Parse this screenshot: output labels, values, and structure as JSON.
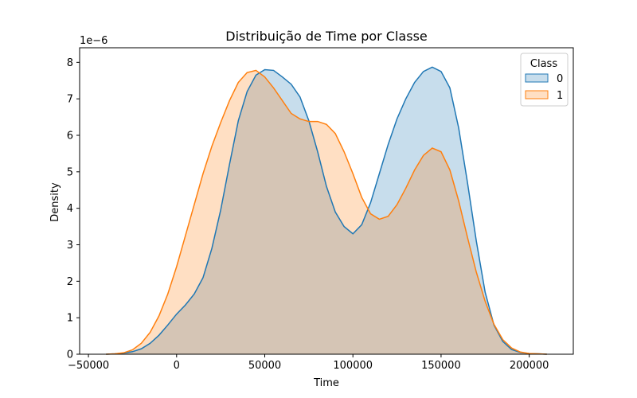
{
  "chart_data": {
    "type": "area",
    "title": "Distribuição de Time por Classe",
    "xlabel": "Time",
    "ylabel": "Density",
    "y_offset_label": "1e−6",
    "xlim": [
      -55000,
      225000
    ],
    "ylim": [
      0,
      8.4
    ],
    "x_ticks": [
      -50000,
      0,
      50000,
      100000,
      150000,
      200000
    ],
    "x_tick_labels": [
      "−50000",
      "0",
      "50000",
      "100000",
      "150000",
      "200000"
    ],
    "y_ticks": [
      0,
      1,
      2,
      3,
      4,
      5,
      6,
      7,
      8
    ],
    "y_tick_labels": [
      "0",
      "1",
      "2",
      "3",
      "4",
      "5",
      "6",
      "7",
      "8"
    ],
    "grid": false,
    "legend": {
      "title": "Class",
      "placement": "top-right"
    },
    "series": [
      {
        "name": "0",
        "color": "#1f77b4",
        "fill": "#1f77b4",
        "x": [
          -40000,
          -35000,
          -30000,
          -25000,
          -20000,
          -15000,
          -10000,
          -5000,
          0,
          5000,
          10000,
          15000,
          20000,
          25000,
          30000,
          35000,
          40000,
          45000,
          50000,
          55000,
          60000,
          65000,
          70000,
          75000,
          80000,
          85000,
          90000,
          95000,
          100000,
          105000,
          110000,
          115000,
          120000,
          125000,
          130000,
          135000,
          140000,
          145000,
          150000,
          155000,
          160000,
          165000,
          170000,
          175000,
          180000,
          185000,
          190000,
          195000,
          200000,
          205000,
          210000
        ],
        "y": [
          0.0,
          0.01,
          0.03,
          0.07,
          0.15,
          0.3,
          0.52,
          0.8,
          1.1,
          1.35,
          1.65,
          2.1,
          2.9,
          3.95,
          5.2,
          6.4,
          7.2,
          7.65,
          7.8,
          7.78,
          7.6,
          7.4,
          7.05,
          6.4,
          5.55,
          4.6,
          3.9,
          3.5,
          3.3,
          3.55,
          4.15,
          4.95,
          5.75,
          6.45,
          7.0,
          7.45,
          7.75,
          7.87,
          7.75,
          7.3,
          6.2,
          4.7,
          3.1,
          1.7,
          0.8,
          0.35,
          0.13,
          0.05,
          0.02,
          0.01,
          0.0
        ]
      },
      {
        "name": "1",
        "color": "#ff7f0e",
        "fill": "#ff7f0e",
        "x": [
          -40000,
          -35000,
          -30000,
          -25000,
          -20000,
          -15000,
          -10000,
          -5000,
          0,
          5000,
          10000,
          15000,
          20000,
          25000,
          30000,
          35000,
          40000,
          45000,
          50000,
          55000,
          60000,
          65000,
          70000,
          75000,
          80000,
          85000,
          90000,
          95000,
          100000,
          105000,
          110000,
          115000,
          120000,
          125000,
          130000,
          135000,
          140000,
          145000,
          150000,
          155000,
          160000,
          165000,
          170000,
          175000,
          180000,
          185000,
          190000,
          195000,
          200000,
          205000,
          210000
        ],
        "y": [
          0.0,
          0.01,
          0.04,
          0.12,
          0.3,
          0.6,
          1.05,
          1.65,
          2.4,
          3.25,
          4.1,
          4.95,
          5.7,
          6.35,
          6.95,
          7.45,
          7.72,
          7.78,
          7.6,
          7.3,
          6.95,
          6.6,
          6.45,
          6.38,
          6.38,
          6.3,
          6.05,
          5.55,
          4.95,
          4.3,
          3.85,
          3.7,
          3.78,
          4.1,
          4.55,
          5.05,
          5.45,
          5.65,
          5.55,
          5.05,
          4.2,
          3.2,
          2.25,
          1.45,
          0.82,
          0.4,
          0.17,
          0.06,
          0.02,
          0.01,
          0.0
        ]
      }
    ]
  }
}
